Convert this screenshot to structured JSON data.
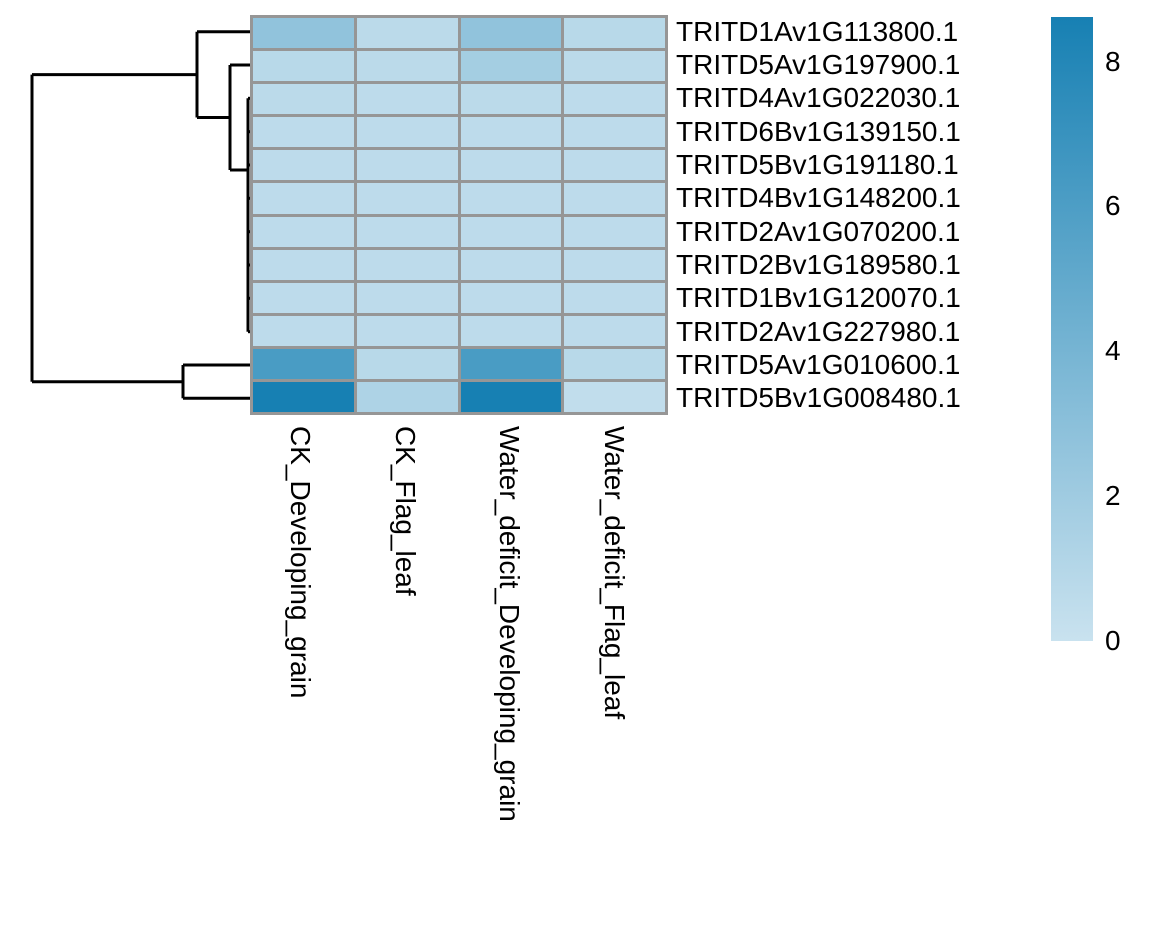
{
  "figure": {
    "background": "#ffffff",
    "text_color": "#000000"
  },
  "chart_data": {
    "type": "heatmap",
    "title": "",
    "xlabel": "",
    "ylabel": "",
    "legend_position": "right",
    "grid": false,
    "columns": [
      "CK_Developing_grain",
      "CK_Flag_leaf",
      "Water_deficit_Developing_grain",
      "Water_deficit_Flag_leaf"
    ],
    "rows": [
      "TRITD1Av1G113800.1",
      "TRITD5Av1G197900.1",
      "TRITD4Av1G022030.1",
      "TRITD6Bv1G139150.1",
      "TRITD5Bv1G191180.1",
      "TRITD4Bv1G148200.1",
      "TRITD2Av1G070200.1",
      "TRITD2Bv1G189580.1",
      "TRITD1Bv1G120070.1",
      "TRITD2Av1G227980.1",
      "TRITD5Av1G010600.1",
      "TRITD5Bv1G008480.1"
    ],
    "values": [
      [
        2.7,
        0.7,
        2.7,
        0.8
      ],
      [
        0.8,
        0.7,
        1.8,
        0.7
      ],
      [
        0.7,
        0.6,
        0.7,
        0.6
      ],
      [
        0.6,
        0.6,
        0.6,
        0.6
      ],
      [
        0.6,
        0.6,
        0.6,
        0.6
      ],
      [
        0.6,
        0.6,
        0.6,
        0.6
      ],
      [
        0.6,
        0.6,
        0.6,
        0.6
      ],
      [
        0.6,
        0.6,
        0.6,
        0.6
      ],
      [
        0.6,
        0.6,
        0.6,
        0.6
      ],
      [
        0.6,
        0.6,
        0.6,
        0.6
      ],
      [
        6.2,
        0.8,
        6.2,
        0.8
      ],
      [
        8.6,
        1.3,
        8.6,
        0.4
      ]
    ],
    "color_scale": {
      "min": 0,
      "max": 8.62,
      "min_color": "#c9e2ef",
      "max_color": "#1780b3"
    },
    "colorbar_ticks": [
      8,
      6,
      4,
      2,
      0
    ],
    "cell_border_color": "#969696",
    "dendrogram": {
      "color": "#000000",
      "line_width": 3,
      "segments": [
        [
          32,
          74.6,
          197,
          74.6
        ],
        [
          32,
          74.6,
          32,
          381.7
        ],
        [
          32,
          381.7,
          183,
          381.7
        ],
        [
          197,
          31.7,
          197,
          117.5
        ],
        [
          197,
          31.7,
          252,
          31.7
        ],
        [
          197,
          117.5,
          230,
          117.5
        ],
        [
          230,
          65,
          230,
          170
        ],
        [
          230,
          65,
          252,
          65
        ],
        [
          230,
          170,
          248,
          170
        ],
        [
          248,
          98.3,
          248,
          331.7
        ],
        [
          248,
          98.3,
          252,
          98.3
        ],
        [
          248,
          131.7,
          252,
          131.7
        ],
        [
          248,
          165,
          252,
          165
        ],
        [
          248,
          198.3,
          252,
          198.3
        ],
        [
          248,
          231.7,
          252,
          231.7
        ],
        [
          248,
          265,
          252,
          265
        ],
        [
          248,
          298.3,
          252,
          298.3
        ],
        [
          248,
          331.7,
          252,
          331.7
        ],
        [
          183,
          365,
          183,
          398.3
        ],
        [
          183,
          365,
          252,
          365
        ],
        [
          183,
          398.3,
          252,
          398.3
        ]
      ]
    }
  }
}
